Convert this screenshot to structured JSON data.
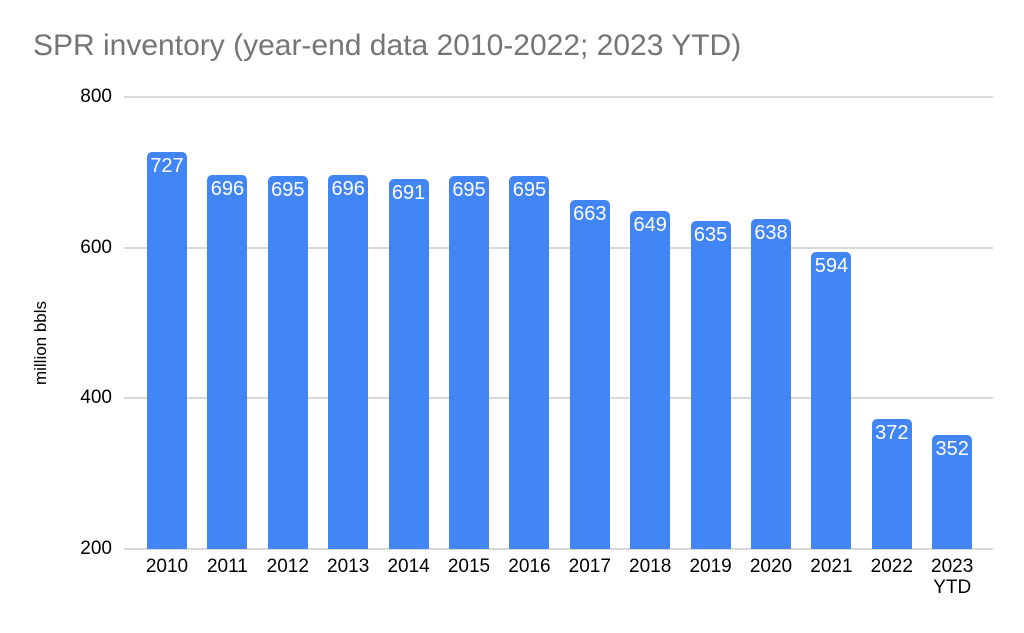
{
  "chart_data": {
    "type": "bar",
    "title": "SPR inventory (year-end data 2010-2022; 2023 YTD)",
    "ylabel": "million bbls",
    "xlabel": "",
    "categories": [
      "2010",
      "2011",
      "2012",
      "2013",
      "2014",
      "2015",
      "2016",
      "2017",
      "2018",
      "2019",
      "2020",
      "2021",
      "2022",
      "2023 YTD"
    ],
    "values": [
      727,
      696,
      695,
      696,
      691,
      695,
      695,
      663,
      649,
      635,
      638,
      594,
      372,
      352
    ],
    "ylim": [
      200,
      800
    ],
    "yticks": [
      200,
      400,
      600,
      800
    ],
    "grid": true,
    "legend": false,
    "layout": {
      "bar_labels": "inside-top",
      "gridlines": "horizontal"
    },
    "colors": {
      "bar": "#4285f4",
      "bar_label": "#ffffff",
      "title": "#757575",
      "axis_text": "#000000",
      "gridline": "#d9d9d9",
      "background": "#ffffff"
    }
  }
}
